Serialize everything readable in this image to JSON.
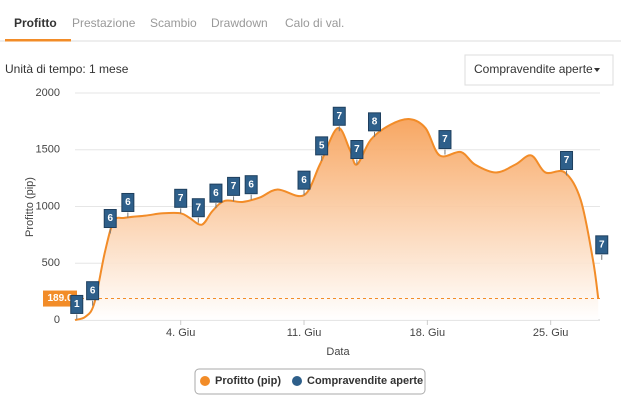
{
  "tabs": [
    "Profitto",
    "Prestazione",
    "Scambio",
    "Drawdown",
    "Calo di val."
  ],
  "unit_label": "Unità di tempo: 1 mese",
  "dropdown": "Compravendite aperte",
  "chart_data": {
    "type": "area",
    "xlabel": "Data",
    "ylabel": "Profitto (pip)",
    "xlim": [
      0,
      29.8
    ],
    "xticks": [
      {
        "value": 6,
        "label": "4. Giu"
      },
      {
        "value": 13,
        "label": "11. Giu"
      },
      {
        "value": 20,
        "label": "18. Giu"
      },
      {
        "value": 27,
        "label": "25. Giu"
      }
    ],
    "ylim": [
      0,
      2000
    ],
    "yticks": [
      0,
      500,
      1000,
      1500,
      2000
    ],
    "grid": true,
    "reference_line": {
      "value": 189,
      "label": "189.0"
    },
    "series": [
      {
        "name": "Profitto (pip)",
        "color": "#f28c28",
        "x": [
          0,
          0.6,
          1.1,
          1.7,
          2.2,
          2.8,
          4,
          5,
          6,
          6.5,
          7.2,
          7.8,
          8.5,
          9.5,
          10.5,
          11.5,
          13,
          13.9,
          14.9,
          15.6,
          16,
          16.8,
          17.9,
          19,
          19.9,
          20.7,
          21.9,
          22.7,
          23.9,
          25,
          25.9,
          26.7,
          27.8,
          28.7,
          29.4,
          29.7
        ],
        "values": [
          0,
          30,
          150,
          600,
          870,
          900,
          920,
          940,
          940,
          900,
          840,
          960,
          1050,
          1040,
          1080,
          1150,
          1100,
          1370,
          1690,
          1500,
          1370,
          1590,
          1720,
          1770,
          1690,
          1450,
          1480,
          1370,
          1300,
          1370,
          1450,
          1300,
          1300,
          1060,
          530,
          190
        ]
      },
      {
        "name": "Compravendite aperte",
        "color": "#2e5f8a",
        "x": [
          0.1,
          1,
          2,
          3,
          6,
          7,
          8,
          9,
          10,
          13,
          14,
          15,
          16,
          17,
          21,
          27.9,
          29.9
        ],
        "values": [
          1,
          6,
          6,
          6,
          7,
          7,
          6,
          7,
          6,
          6,
          5,
          7,
          7,
          8,
          7,
          7,
          7
        ]
      }
    ]
  }
}
